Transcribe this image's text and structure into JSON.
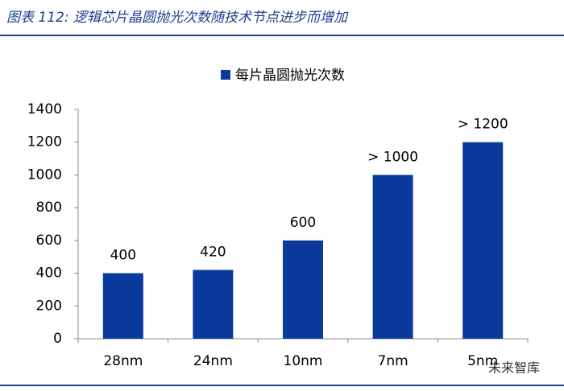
{
  "header": {
    "title": "图表 112: 逻辑芯片晶圆抛光次数随技术节点进步而增加"
  },
  "watermark": "未来智库",
  "chart_data": {
    "type": "bar",
    "categories": [
      "28nm",
      "24nm",
      "10nm",
      "7nm",
      "5nm"
    ],
    "series": [
      {
        "name": "每片晶圆抛光次数",
        "color": "#0a3a9c",
        "values": [
          400,
          420,
          600,
          1000,
          1200
        ],
        "value_labels": [
          "400",
          "420",
          "600",
          "> 1000",
          "> 1200"
        ]
      }
    ],
    "ylim": [
      0,
      1400
    ],
    "yticks": [
      0,
      200,
      400,
      600,
      800,
      1000,
      1200,
      1400
    ],
    "legend": "top",
    "grid": false
  }
}
